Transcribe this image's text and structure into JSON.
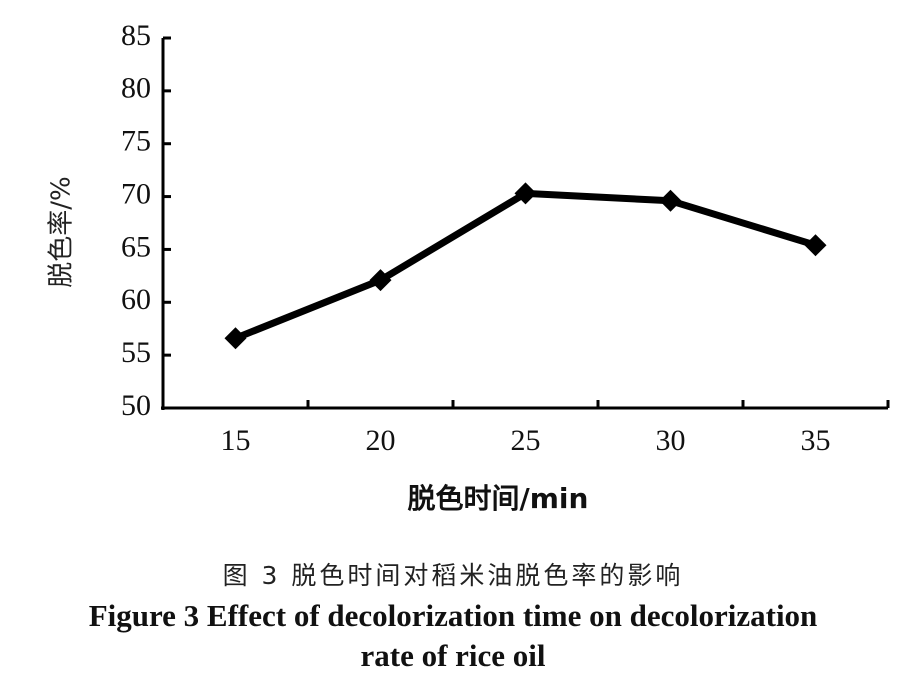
{
  "chart_data": {
    "type": "line",
    "x": [
      15,
      20,
      25,
      30,
      35
    ],
    "series": [
      {
        "values": [
          56.6,
          62.1,
          70.3,
          69.6,
          65.4
        ]
      }
    ],
    "xlabel": "脱色时间/min",
    "ylabel": "脱色率/%",
    "xticks": [
      "15",
      "20",
      "25",
      "30",
      "35"
    ],
    "yticks": [
      "50",
      "55",
      "60",
      "65",
      "70",
      "75",
      "80",
      "85"
    ],
    "ylim": [
      50,
      85
    ],
    "grid": false,
    "marker": "diamond",
    "line_color": "#000000"
  },
  "caption": {
    "cn": "图 3 脱色时间对稻米油脱色率的影响",
    "en_line1": "Figure 3 Effect of decolorization time on decolorization",
    "en_line2": "rate of rice oil"
  }
}
